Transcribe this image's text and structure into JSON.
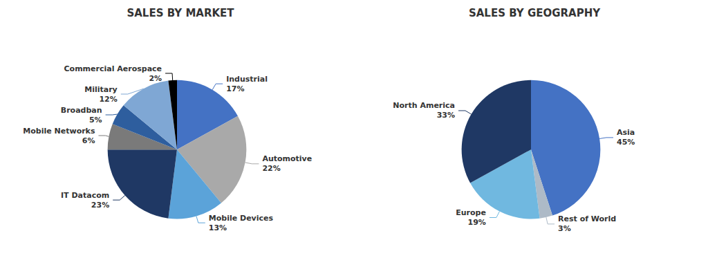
{
  "chart_data": [
    {
      "type": "pie",
      "title": "SALES BY MARKET",
      "categories": [
        "Industrial",
        "Automotive",
        "Mobile Devices",
        "IT Datacom",
        "Mobile Networks",
        "Broadban",
        "Military",
        "Commercial Aerospace"
      ],
      "values": [
        17,
        22,
        13,
        23,
        6,
        5,
        12,
        2
      ],
      "value_labels": [
        "17%",
        "22%",
        "13%",
        "23%",
        "6%",
        "5%",
        "12%",
        "2%"
      ],
      "colors": [
        "#4472C4",
        "#A9A9A9",
        "#5BA3D9",
        "#1F3864",
        "#7A7A7A",
        "#2E5E9E",
        "#7FA7D4",
        "#000000"
      ],
      "data_labels": true
    },
    {
      "type": "pie",
      "title": "SALES BY GEOGRAPHY",
      "categories": [
        "Asia",
        "Rest of World",
        "Europe",
        "North America"
      ],
      "values": [
        45,
        3,
        19,
        33
      ],
      "value_labels": [
        "45%",
        "3%",
        "19%",
        "33%"
      ],
      "colors": [
        "#4472C4",
        "#ADBAC7",
        "#70B8E0",
        "#1F3864"
      ],
      "data_labels": true
    }
  ]
}
